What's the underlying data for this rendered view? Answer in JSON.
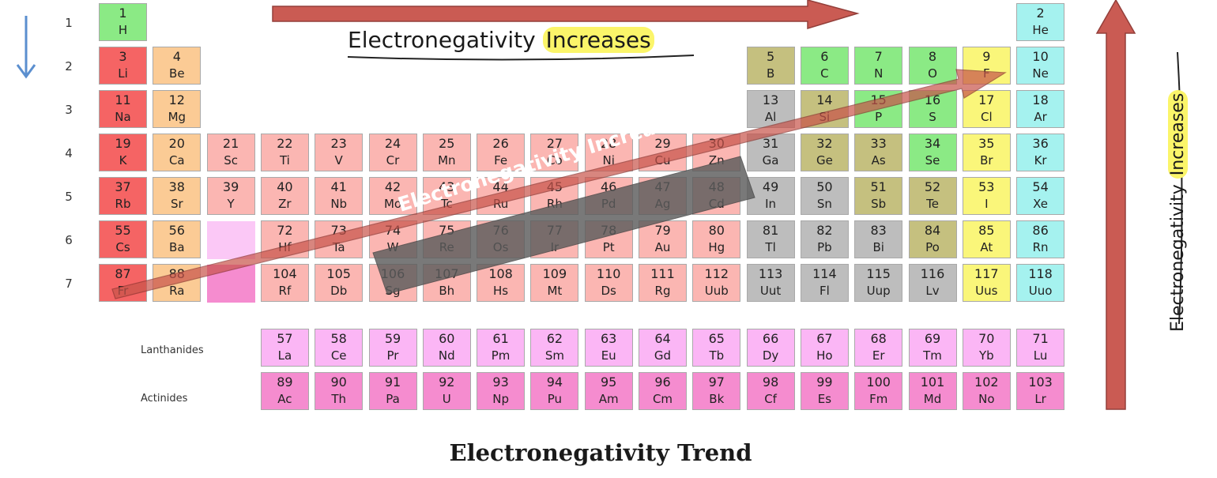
{
  "title": "Electronegativity Trend",
  "period_labels": [
    "1",
    "2",
    "3",
    "4",
    "5",
    "6",
    "7"
  ],
  "series_labels": {
    "lanthanides": "Lanthanides",
    "actinides": "Actinides"
  },
  "arrows": {
    "horizontal_label_prefix": "Electronegativity",
    "horizontal_label_highlight": "Increases",
    "vertical_label_prefix": "Electronegativity",
    "vertical_label_highlight": "Increases",
    "diagonal_label": "Electronegativity Increases"
  },
  "colors": {
    "arrow_fill": "#c8534a",
    "arrow_stroke": "#8e3530",
    "highlight": "#fbf56a",
    "down_arrow": "#5b8fcf"
  },
  "elements": [
    {
      "n": "1",
      "s": "H",
      "p": 1,
      "g": 1,
      "c": "nonmetal"
    },
    {
      "n": "2",
      "s": "He",
      "p": 1,
      "g": 18,
      "c": "noble"
    },
    {
      "n": "3",
      "s": "Li",
      "p": 2,
      "g": 1,
      "c": "alkali"
    },
    {
      "n": "4",
      "s": "Be",
      "p": 2,
      "g": 2,
      "c": "alkaline"
    },
    {
      "n": "5",
      "s": "B",
      "p": 2,
      "g": 13,
      "c": "metalloid"
    },
    {
      "n": "6",
      "s": "C",
      "p": 2,
      "g": 14,
      "c": "nonmetal"
    },
    {
      "n": "7",
      "s": "N",
      "p": 2,
      "g": 15,
      "c": "nonmetal"
    },
    {
      "n": "8",
      "s": "O",
      "p": 2,
      "g": 16,
      "c": "nonmetal"
    },
    {
      "n": "9",
      "s": "F",
      "p": 2,
      "g": 17,
      "c": "halogen"
    },
    {
      "n": "10",
      "s": "Ne",
      "p": 2,
      "g": 18,
      "c": "noble"
    },
    {
      "n": "11",
      "s": "Na",
      "p": 3,
      "g": 1,
      "c": "alkali"
    },
    {
      "n": "12",
      "s": "Mg",
      "p": 3,
      "g": 2,
      "c": "alkaline"
    },
    {
      "n": "13",
      "s": "Al",
      "p": 3,
      "g": 13,
      "c": "post"
    },
    {
      "n": "14",
      "s": "Si",
      "p": 3,
      "g": 14,
      "c": "metalloid"
    },
    {
      "n": "15",
      "s": "P",
      "p": 3,
      "g": 15,
      "c": "nonmetal"
    },
    {
      "n": "16",
      "s": "S",
      "p": 3,
      "g": 16,
      "c": "nonmetal"
    },
    {
      "n": "17",
      "s": "Cl",
      "p": 3,
      "g": 17,
      "c": "halogen"
    },
    {
      "n": "18",
      "s": "Ar",
      "p": 3,
      "g": 18,
      "c": "noble"
    },
    {
      "n": "19",
      "s": "K",
      "p": 4,
      "g": 1,
      "c": "alkali"
    },
    {
      "n": "20",
      "s": "Ca",
      "p": 4,
      "g": 2,
      "c": "alkaline"
    },
    {
      "n": "21",
      "s": "Sc",
      "p": 4,
      "g": 3,
      "c": "transition"
    },
    {
      "n": "22",
      "s": "Ti",
      "p": 4,
      "g": 4,
      "c": "transition"
    },
    {
      "n": "23",
      "s": "V",
      "p": 4,
      "g": 5,
      "c": "transition"
    },
    {
      "n": "24",
      "s": "Cr",
      "p": 4,
      "g": 6,
      "c": "transition"
    },
    {
      "n": "25",
      "s": "Mn",
      "p": 4,
      "g": 7,
      "c": "transition"
    },
    {
      "n": "26",
      "s": "Fe",
      "p": 4,
      "g": 8,
      "c": "transition"
    },
    {
      "n": "27",
      "s": "Co",
      "p": 4,
      "g": 9,
      "c": "transition"
    },
    {
      "n": "28",
      "s": "Ni",
      "p": 4,
      "g": 10,
      "c": "transition"
    },
    {
      "n": "29",
      "s": "Cu",
      "p": 4,
      "g": 11,
      "c": "transition"
    },
    {
      "n": "30",
      "s": "Zn",
      "p": 4,
      "g": 12,
      "c": "transition"
    },
    {
      "n": "31",
      "s": "Ga",
      "p": 4,
      "g": 13,
      "c": "post"
    },
    {
      "n": "32",
      "s": "Ge",
      "p": 4,
      "g": 14,
      "c": "metalloid"
    },
    {
      "n": "33",
      "s": "As",
      "p": 4,
      "g": 15,
      "c": "metalloid"
    },
    {
      "n": "34",
      "s": "Se",
      "p": 4,
      "g": 16,
      "c": "nonmetal"
    },
    {
      "n": "35",
      "s": "Br",
      "p": 4,
      "g": 17,
      "c": "halogen"
    },
    {
      "n": "36",
      "s": "Kr",
      "p": 4,
      "g": 18,
      "c": "noble"
    },
    {
      "n": "37",
      "s": "Rb",
      "p": 5,
      "g": 1,
      "c": "alkali"
    },
    {
      "n": "38",
      "s": "Sr",
      "p": 5,
      "g": 2,
      "c": "alkaline"
    },
    {
      "n": "39",
      "s": "Y",
      "p": 5,
      "g": 3,
      "c": "transition"
    },
    {
      "n": "40",
      "s": "Zr",
      "p": 5,
      "g": 4,
      "c": "transition"
    },
    {
      "n": "41",
      "s": "Nb",
      "p": 5,
      "g": 5,
      "c": "transition"
    },
    {
      "n": "42",
      "s": "Mo",
      "p": 5,
      "g": 6,
      "c": "transition"
    },
    {
      "n": "43",
      "s": "Tc",
      "p": 5,
      "g": 7,
      "c": "transition"
    },
    {
      "n": "44",
      "s": "Ru",
      "p": 5,
      "g": 8,
      "c": "transition"
    },
    {
      "n": "45",
      "s": "Rh",
      "p": 5,
      "g": 9,
      "c": "transition"
    },
    {
      "n": "46",
      "s": "Pd",
      "p": 5,
      "g": 10,
      "c": "transition"
    },
    {
      "n": "47",
      "s": "Ag",
      "p": 5,
      "g": 11,
      "c": "transition"
    },
    {
      "n": "48",
      "s": "Cd",
      "p": 5,
      "g": 12,
      "c": "transition"
    },
    {
      "n": "49",
      "s": "In",
      "p": 5,
      "g": 13,
      "c": "post"
    },
    {
      "n": "50",
      "s": "Sn",
      "p": 5,
      "g": 14,
      "c": "post"
    },
    {
      "n": "51",
      "s": "Sb",
      "p": 5,
      "g": 15,
      "c": "metalloid"
    },
    {
      "n": "52",
      "s": "Te",
      "p": 5,
      "g": 16,
      "c": "metalloid"
    },
    {
      "n": "53",
      "s": "I",
      "p": 5,
      "g": 17,
      "c": "halogen"
    },
    {
      "n": "54",
      "s": "Xe",
      "p": 5,
      "g": 18,
      "c": "noble"
    },
    {
      "n": "55",
      "s": "Cs",
      "p": 6,
      "g": 1,
      "c": "alkali"
    },
    {
      "n": "56",
      "s": "Ba",
      "p": 6,
      "g": 2,
      "c": "alkaline"
    },
    {
      "n": "72",
      "s": "Hf",
      "p": 6,
      "g": 4,
      "c": "transition"
    },
    {
      "n": "73",
      "s": "Ta",
      "p": 6,
      "g": 5,
      "c": "transition"
    },
    {
      "n": "74",
      "s": "W",
      "p": 6,
      "g": 6,
      "c": "transition"
    },
    {
      "n": "75",
      "s": "Re",
      "p": 6,
      "g": 7,
      "c": "transition"
    },
    {
      "n": "76",
      "s": "Os",
      "p": 6,
      "g": 8,
      "c": "transition"
    },
    {
      "n": "77",
      "s": "Ir",
      "p": 6,
      "g": 9,
      "c": "transition"
    },
    {
      "n": "78",
      "s": "Pt",
      "p": 6,
      "g": 10,
      "c": "transition"
    },
    {
      "n": "79",
      "s": "Au",
      "p": 6,
      "g": 11,
      "c": "transition"
    },
    {
      "n": "80",
      "s": "Hg",
      "p": 6,
      "g": 12,
      "c": "transition"
    },
    {
      "n": "81",
      "s": "Tl",
      "p": 6,
      "g": 13,
      "c": "post"
    },
    {
      "n": "82",
      "s": "Pb",
      "p": 6,
      "g": 14,
      "c": "post"
    },
    {
      "n": "83",
      "s": "Bi",
      "p": 6,
      "g": 15,
      "c": "post"
    },
    {
      "n": "84",
      "s": "Po",
      "p": 6,
      "g": 16,
      "c": "metalloid"
    },
    {
      "n": "85",
      "s": "At",
      "p": 6,
      "g": 17,
      "c": "halogen"
    },
    {
      "n": "86",
      "s": "Rn",
      "p": 6,
      "g": 18,
      "c": "noble"
    },
    {
      "n": "87",
      "s": "Fr",
      "p": 7,
      "g": 1,
      "c": "alkali"
    },
    {
      "n": "88",
      "s": "Ra",
      "p": 7,
      "g": 2,
      "c": "alkaline"
    },
    {
      "n": "104",
      "s": "Rf",
      "p": 7,
      "g": 4,
      "c": "transition"
    },
    {
      "n": "105",
      "s": "Db",
      "p": 7,
      "g": 5,
      "c": "transition"
    },
    {
      "n": "106",
      "s": "Sg",
      "p": 7,
      "g": 6,
      "c": "transition"
    },
    {
      "n": "107",
      "s": "Bh",
      "p": 7,
      "g": 7,
      "c": "transition"
    },
    {
      "n": "108",
      "s": "Hs",
      "p": 7,
      "g": 8,
      "c": "transition"
    },
    {
      "n": "109",
      "s": "Mt",
      "p": 7,
      "g": 9,
      "c": "transition"
    },
    {
      "n": "110",
      "s": "Ds",
      "p": 7,
      "g": 10,
      "c": "transition"
    },
    {
      "n": "111",
      "s": "Rg",
      "p": 7,
      "g": 11,
      "c": "transition"
    },
    {
      "n": "112",
      "s": "Uub",
      "p": 7,
      "g": 12,
      "c": "transition"
    },
    {
      "n": "113",
      "s": "Uut",
      "p": 7,
      "g": 13,
      "c": "post"
    },
    {
      "n": "114",
      "s": "Fl",
      "p": 7,
      "g": 14,
      "c": "post"
    },
    {
      "n": "115",
      "s": "Uup",
      "p": 7,
      "g": 15,
      "c": "post"
    },
    {
      "n": "116",
      "s": "Lv",
      "p": 7,
      "g": 16,
      "c": "post"
    },
    {
      "n": "117",
      "s": "Uus",
      "p": 7,
      "g": 17,
      "c": "halogen"
    },
    {
      "n": "118",
      "s": "Uuo",
      "p": 7,
      "g": 18,
      "c": "noble"
    }
  ],
  "lanthanides": [
    {
      "n": "57",
      "s": "La"
    },
    {
      "n": "58",
      "s": "Ce"
    },
    {
      "n": "59",
      "s": "Pr"
    },
    {
      "n": "60",
      "s": "Nd"
    },
    {
      "n": "61",
      "s": "Pm"
    },
    {
      "n": "62",
      "s": "Sm"
    },
    {
      "n": "63",
      "s": "Eu"
    },
    {
      "n": "64",
      "s": "Gd"
    },
    {
      "n": "65",
      "s": "Tb"
    },
    {
      "n": "66",
      "s": "Dy"
    },
    {
      "n": "67",
      "s": "Ho"
    },
    {
      "n": "68",
      "s": "Er"
    },
    {
      "n": "69",
      "s": "Tm"
    },
    {
      "n": "70",
      "s": "Yb"
    },
    {
      "n": "71",
      "s": "Lu"
    }
  ],
  "actinides": [
    {
      "n": "89",
      "s": "Ac"
    },
    {
      "n": "90",
      "s": "Th"
    },
    {
      "n": "91",
      "s": "Pa"
    },
    {
      "n": "92",
      "s": "U"
    },
    {
      "n": "93",
      "s": "Np"
    },
    {
      "n": "94",
      "s": "Pu"
    },
    {
      "n": "95",
      "s": "Am"
    },
    {
      "n": "96",
      "s": "Cm"
    },
    {
      "n": "97",
      "s": "Bk"
    },
    {
      "n": "98",
      "s": "Cf"
    },
    {
      "n": "99",
      "s": "Es"
    },
    {
      "n": "100",
      "s": "Fm"
    },
    {
      "n": "101",
      "s": "Md"
    },
    {
      "n": "102",
      "s": "No"
    },
    {
      "n": "103",
      "s": "Lr"
    }
  ]
}
